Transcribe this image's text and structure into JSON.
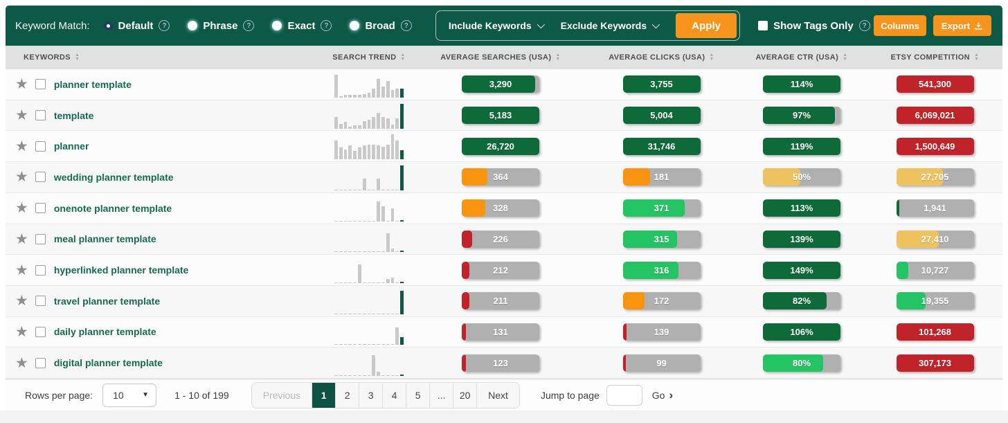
{
  "colors": {
    "dark_green": "#0e6b39",
    "bright_green": "#24c364",
    "orange": "#f99410",
    "amber": "#edc25f",
    "red": "#c0232a",
    "gray": "#b0b0b0",
    "header_bg": "#0d5945",
    "button_orange": "#f7941e"
  },
  "toolbar": {
    "keyword_match_label": "Keyword Match:",
    "radios": [
      {
        "label": "Default",
        "selected": true
      },
      {
        "label": "Phrase",
        "selected": false
      },
      {
        "label": "Exact",
        "selected": false
      },
      {
        "label": "Broad",
        "selected": false
      }
    ],
    "include_label": "Include Keywords",
    "exclude_label": "Exclude Keywords",
    "apply_label": "Apply",
    "show_tags_label": "Show Tags Only",
    "columns_label": "Columns",
    "export_label": "Export"
  },
  "table": {
    "columns": [
      {
        "label": "KEYWORDS"
      },
      {
        "label": "SEARCH TREND"
      },
      {
        "label": "AVERAGE SEARCHES (USA)"
      },
      {
        "label": "AVERAGE CLICKS (USA)"
      },
      {
        "label": "AVERAGE CTR (USA)"
      },
      {
        "label": "ETSY COMPETITION"
      }
    ],
    "rows": [
      {
        "keyword": "planner template",
        "trend": [
          88,
          4,
          10,
          10,
          10,
          10,
          12,
          18,
          35,
          72,
          42,
          62,
          28,
          35,
          33
        ],
        "searches": {
          "value": "3,290",
          "color": "dark_green",
          "fill": 95
        },
        "clicks": {
          "value": "3,755",
          "color": "dark_green",
          "fill": 100
        },
        "ctr": {
          "value": "114%",
          "color": "dark_green",
          "fill": 100
        },
        "competition": {
          "value": "541,300",
          "color": "red",
          "fill": 100
        }
      },
      {
        "keyword": "template",
        "trend": [
          45,
          18,
          25,
          8,
          14,
          14,
          28,
          35,
          45,
          60,
          45,
          40,
          15,
          40,
          95
        ],
        "searches": {
          "value": "5,183",
          "color": "dark_green",
          "fill": 100
        },
        "clicks": {
          "value": "5,004",
          "color": "dark_green",
          "fill": 100
        },
        "ctr": {
          "value": "97%",
          "color": "dark_green",
          "fill": 93
        },
        "competition": {
          "value": "6,069,021",
          "color": "red",
          "fill": 100
        }
      },
      {
        "keyword": "planner",
        "trend": [
          70,
          45,
          38,
          52,
          32,
          45,
          52,
          55,
          55,
          52,
          48,
          55,
          95,
          70,
          35
        ],
        "searches": {
          "value": "26,720",
          "color": "dark_green",
          "fill": 100
        },
        "clicks": {
          "value": "31,746",
          "color": "dark_green",
          "fill": 100
        },
        "ctr": {
          "value": "119%",
          "color": "dark_green",
          "fill": 100
        },
        "competition": {
          "value": "1,500,649",
          "color": "red",
          "fill": 100
        }
      },
      {
        "keyword": "wedding planner template",
        "trend": [
          3,
          3,
          3,
          3,
          3,
          3,
          45,
          3,
          3,
          45,
          3,
          3,
          3,
          3,
          95
        ],
        "searches": {
          "value": "364",
          "color": "orange",
          "fill": 33
        },
        "clicks": {
          "value": "181",
          "color": "orange",
          "fill": 35
        },
        "ctr": {
          "value": "50%",
          "color": "amber",
          "fill": 48
        },
        "competition": {
          "value": "27,705",
          "color": "amber",
          "fill": 60
        }
      },
      {
        "keyword": "onenote planner template",
        "trend": [
          3,
          3,
          3,
          3,
          3,
          3,
          3,
          3,
          3,
          75,
          58,
          3,
          50,
          3,
          6
        ],
        "searches": {
          "value": "328",
          "color": "orange",
          "fill": 30
        },
        "clicks": {
          "value": "371",
          "color": "bright_green",
          "fill": 80
        },
        "ctr": {
          "value": "113%",
          "color": "dark_green",
          "fill": 100
        },
        "competition": {
          "value": "1,941",
          "color": "dark_green",
          "fill": 4
        }
      },
      {
        "keyword": "meal planner template",
        "trend": [
          3,
          3,
          3,
          3,
          3,
          3,
          3,
          3,
          3,
          3,
          3,
          72,
          12,
          3,
          6
        ],
        "searches": {
          "value": "226",
          "color": "red",
          "fill": 13
        },
        "clicks": {
          "value": "315",
          "color": "bright_green",
          "fill": 70
        },
        "ctr": {
          "value": "139%",
          "color": "dark_green",
          "fill": 100
        },
        "competition": {
          "value": "27,410",
          "color": "amber",
          "fill": 55
        }
      },
      {
        "keyword": "hyperlinked planner template",
        "trend": [
          3,
          3,
          3,
          3,
          3,
          70,
          3,
          3,
          3,
          3,
          3,
          16,
          20,
          3,
          6
        ],
        "searches": {
          "value": "212",
          "color": "red",
          "fill": 10
        },
        "clicks": {
          "value": "316",
          "color": "bright_green",
          "fill": 72
        },
        "ctr": {
          "value": "149%",
          "color": "dark_green",
          "fill": 100
        },
        "competition": {
          "value": "10,727",
          "color": "bright_green",
          "fill": 16
        }
      },
      {
        "keyword": "travel planner template",
        "trend": [
          3,
          3,
          3,
          3,
          3,
          3,
          3,
          3,
          3,
          3,
          3,
          3,
          3,
          3,
          90
        ],
        "searches": {
          "value": "211",
          "color": "red",
          "fill": 10
        },
        "clicks": {
          "value": "172",
          "color": "orange",
          "fill": 28
        },
        "ctr": {
          "value": "82%",
          "color": "dark_green",
          "fill": 82
        },
        "competition": {
          "value": "19,355",
          "color": "bright_green",
          "fill": 38
        }
      },
      {
        "keyword": "daily planner template",
        "trend": [
          3,
          3,
          3,
          3,
          3,
          3,
          3,
          3,
          3,
          3,
          3,
          3,
          3,
          65,
          30
        ],
        "searches": {
          "value": "131",
          "color": "red",
          "fill": 5
        },
        "clicks": {
          "value": "139",
          "color": "red",
          "fill": 5
        },
        "ctr": {
          "value": "106%",
          "color": "dark_green",
          "fill": 100
        },
        "competition": {
          "value": "101,268",
          "color": "red",
          "fill": 100
        }
      },
      {
        "keyword": "digital planner template",
        "trend": [
          3,
          3,
          3,
          3,
          3,
          3,
          3,
          3,
          80,
          15,
          3,
          3,
          3,
          3,
          6
        ],
        "searches": {
          "value": "123",
          "color": "red",
          "fill": 5
        },
        "clicks": {
          "value": "99",
          "color": "red",
          "fill": 4
        },
        "ctr": {
          "value": "80%",
          "color": "bright_green",
          "fill": 78
        },
        "competition": {
          "value": "307,173",
          "color": "red",
          "fill": 100
        }
      }
    ]
  },
  "footer": {
    "rows_per_page_label": "Rows per page:",
    "rows_per_page_value": "10",
    "range_text": "1 - 10 of 199",
    "prev_label": "Previous",
    "pages": [
      "1",
      "2",
      "3",
      "4",
      "5",
      "...",
      "20"
    ],
    "active_page": "1",
    "next_label": "Next",
    "jump_label": "Jump to page",
    "go_label": "Go"
  }
}
